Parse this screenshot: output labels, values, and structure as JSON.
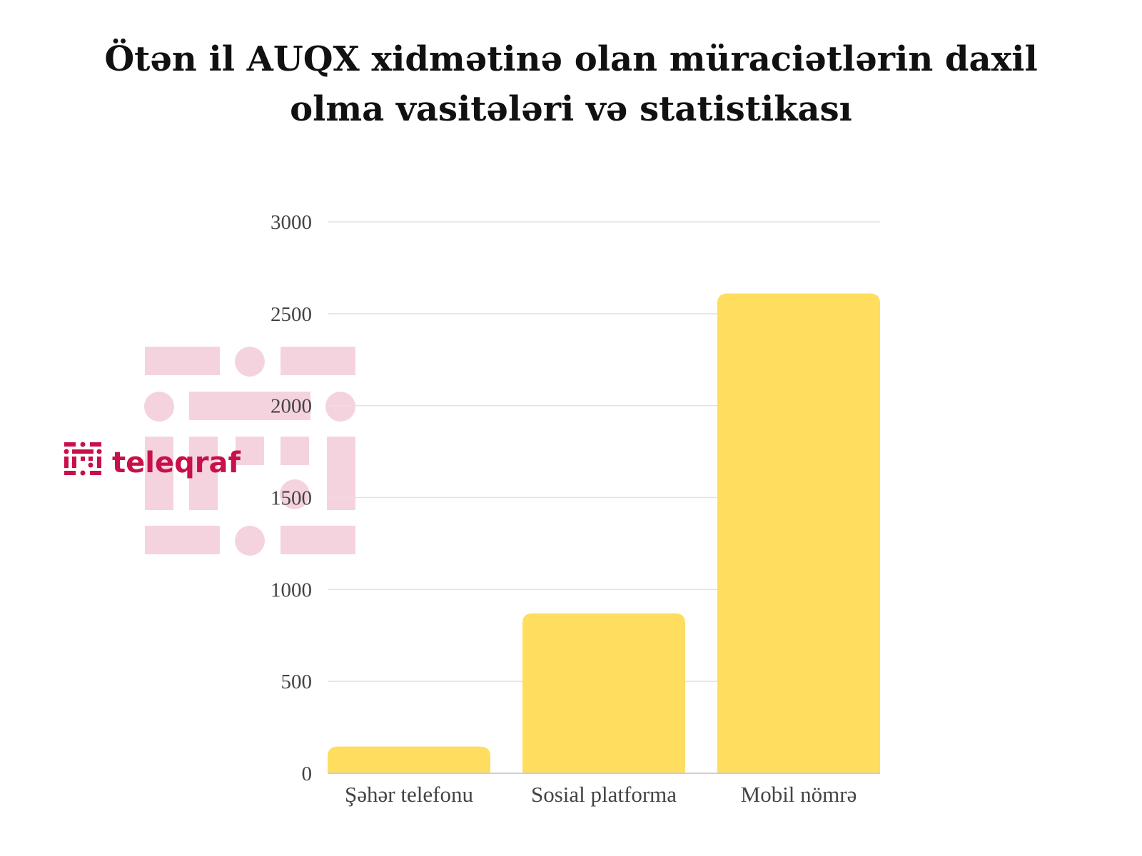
{
  "header": {
    "title_line1": "Ötən il AUQX xidmətinə olan müraciətlərin daxil",
    "title_line2": "olma vasitələri və statistikası"
  },
  "watermark": {
    "brand_name": "teleqraf",
    "icon": "teleqraf-logo-icon",
    "color": "#c8104a",
    "faded_color": "#f5d3de"
  },
  "chart_data": {
    "type": "bar",
    "title": "Ötən il AUQX xidmətinə olan müraciətlərin daxil olma vasitələri və statistikası",
    "categories": [
      "Şəhər telefonu",
      "Sosial platforma",
      "Mobil nömrə"
    ],
    "values": [
      145,
      870,
      2610
    ],
    "ylim": [
      0,
      3000
    ],
    "yticks": [
      0,
      500,
      1000,
      1500,
      2000,
      2500,
      3000
    ],
    "grid": true,
    "legend": "none",
    "bar_color": "#ffdd5e",
    "xlabel": "",
    "ylabel": ""
  }
}
